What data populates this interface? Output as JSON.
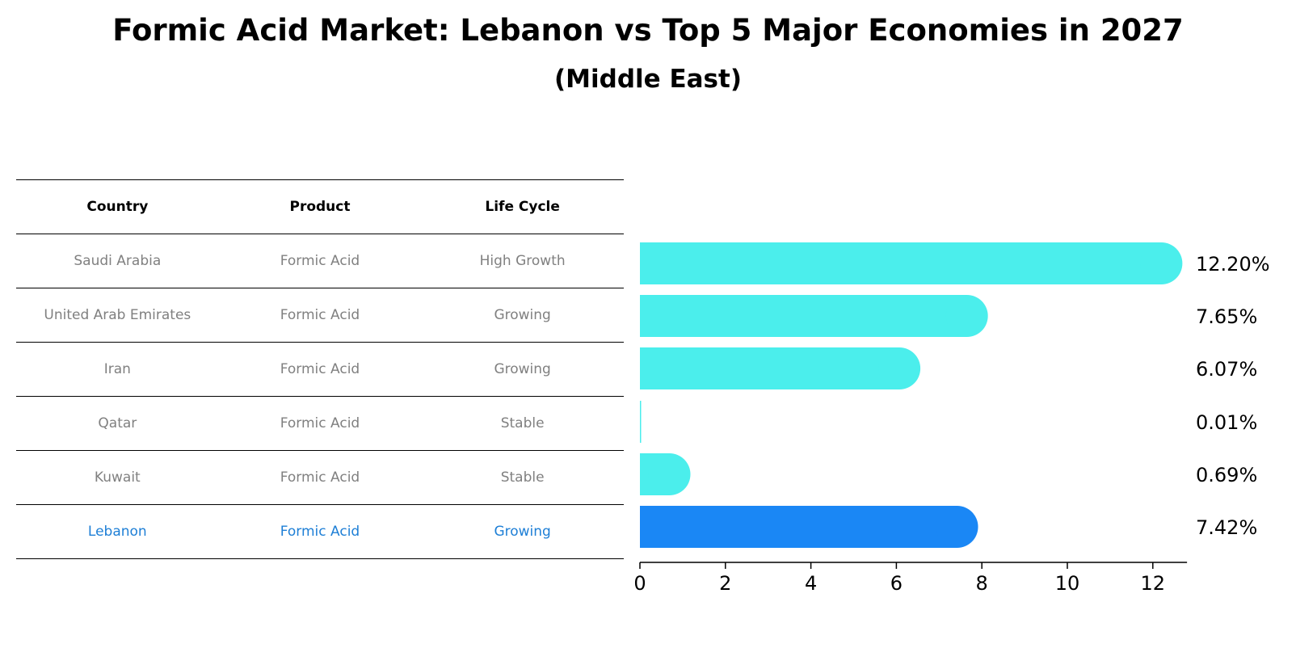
{
  "title": "Formic Acid Market: Lebanon vs Top 5 Major Economies in 2027",
  "subtitle": "(Middle East)",
  "table": {
    "headers": [
      "Country",
      "Product",
      "Life Cycle"
    ],
    "rows": [
      [
        "Saudi Arabia",
        "Formic Acid",
        "High Growth"
      ],
      [
        "United Arab Emirates",
        "Formic Acid",
        "Growing"
      ],
      [
        "Iran",
        "Formic Acid",
        "Growing"
      ],
      [
        "Qatar",
        "Formic Acid",
        "Stable"
      ],
      [
        "Kuwait",
        "Formic Acid",
        "Stable"
      ],
      [
        "Lebanon",
        "Formic Acid",
        "Growing"
      ]
    ],
    "highlight_row": 5
  },
  "chart_data": {
    "type": "bar",
    "orientation": "horizontal",
    "categories": [
      "Saudi Arabia",
      "United Arab Emirates",
      "Iran",
      "Qatar",
      "Kuwait",
      "Lebanon"
    ],
    "values": [
      12.2,
      7.65,
      6.07,
      0.01,
      0.69,
      7.42
    ],
    "value_labels": [
      "12.20%",
      "7.65%",
      "6.07%",
      "0.01%",
      "0.69%",
      "7.42%"
    ],
    "xlim": [
      0,
      12.8
    ],
    "xticks": [
      0,
      2,
      4,
      6,
      8,
      10,
      12
    ],
    "colors": {
      "default": "#4beeec",
      "highlight": "#1a87f5"
    },
    "highlight_index": 5,
    "grid": false
  }
}
